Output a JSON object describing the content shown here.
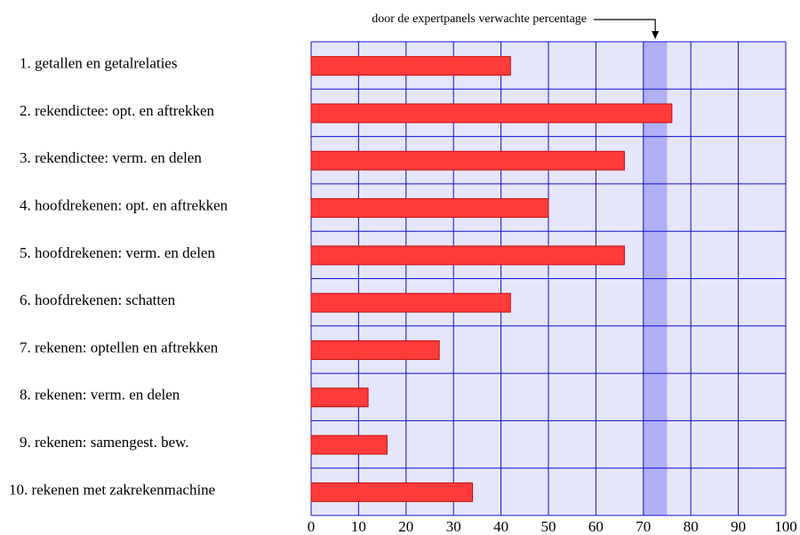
{
  "chart_data": {
    "type": "barh",
    "annotation": "door de expertpanels verwachte percentage",
    "categories": [
      "1. getallen en getalrelaties",
      "2. rekendictee: opt. en aftrekken",
      "3. rekendictee: verm. en delen",
      "4. hoofdrekenen: opt. en aftrekken",
      "5. hoofdrekenen: verm. en delen",
      "6. hoofdrekenen: schatten",
      "7. rekenen: optellen en aftrekken",
      "8. rekenen: verm. en delen",
      "9. rekenen: samengest. bew.",
      "10. rekenen met zakrekenmachine"
    ],
    "values": [
      42,
      76,
      66,
      50,
      66,
      42,
      27,
      12,
      16,
      34
    ],
    "color": "#ff3b3b",
    "expected_range": [
      70,
      75
    ],
    "xlim": [
      0,
      100
    ],
    "xticks": [
      0,
      10,
      20,
      30,
      40,
      50,
      60,
      70,
      80,
      90,
      100
    ],
    "grid": true
  }
}
